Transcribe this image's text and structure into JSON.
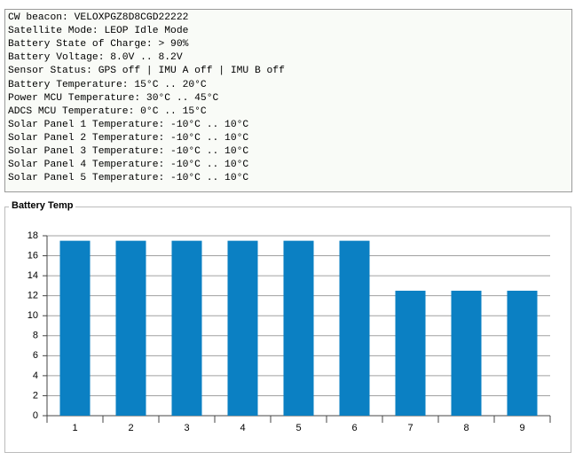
{
  "text_box": {
    "lines": [
      "CW beacon: VELOXPGZ8D8CGD22222",
      "Satellite Mode: LEOP Idle Mode",
      "Battery State of Charge: > 90%",
      "Battery Voltage: 8.0V .. 8.2V",
      "Sensor Status: GPS off | IMU A off | IMU B off",
      "Battery Temperature: 15°C .. 20°C",
      "Power MCU Temperature: 30°C .. 45°C",
      "ADCS MCU Temperature: 0°C .. 15°C",
      "Solar Panel 1 Temperature: -10°C .. 10°C",
      "Solar Panel 2 Temperature: -10°C .. 10°C",
      "Solar Panel 3 Temperature: -10°C .. 10°C",
      "Solar Panel 4 Temperature: -10°C .. 10°C",
      "Solar Panel 5 Temperature: -10°C .. 10°C"
    ]
  },
  "chart_data": {
    "type": "bar",
    "title": "Battery Temp",
    "categories": [
      "1",
      "2",
      "3",
      "4",
      "5",
      "6",
      "7",
      "8",
      "9"
    ],
    "values": [
      17.5,
      17.5,
      17.5,
      17.5,
      17.5,
      17.5,
      12.5,
      12.5,
      12.5
    ],
    "color": "#0b80c3",
    "ylim": [
      0,
      18
    ],
    "yticks": [
      0,
      2,
      4,
      6,
      8,
      10,
      12,
      14,
      16,
      18
    ],
    "grid": true
  }
}
